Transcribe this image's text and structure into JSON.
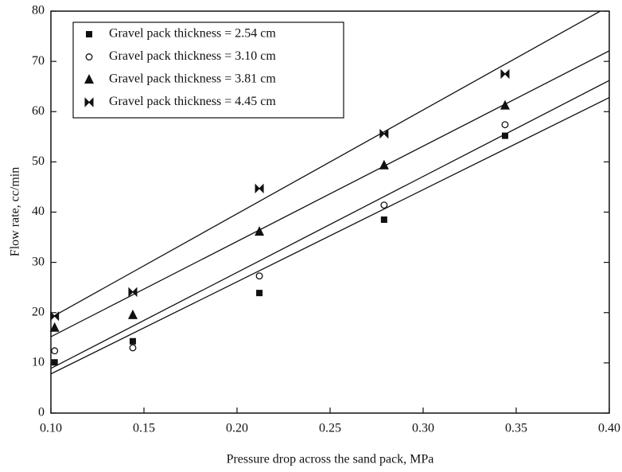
{
  "chart_data": {
    "type": "scatter",
    "xlabel": "Pressure drop across the sand pack, MPa",
    "ylabel": "Flow rate, cc/min",
    "x": [
      0.102,
      0.144,
      0.212,
      0.279,
      0.344
    ],
    "xlim": [
      0.1,
      0.4
    ],
    "xticks": [
      {
        "value": 0.1,
        "label": "0.10"
      },
      {
        "value": 0.15,
        "label": "0.15"
      },
      {
        "value": 0.2,
        "label": "0.20"
      },
      {
        "value": 0.25,
        "label": "0.25"
      },
      {
        "value": 0.3,
        "label": "0.30"
      },
      {
        "value": 0.35,
        "label": "0.35"
      },
      {
        "value": 0.4,
        "label": "0.40"
      }
    ],
    "ylim": [
      0,
      80
    ],
    "yticks": [
      0,
      10,
      20,
      30,
      40,
      50,
      60,
      70,
      80
    ],
    "legend": "upper left",
    "series": [
      {
        "name": "Gravel pack thickness = 2.54 cm",
        "marker": "square",
        "color": "#111111",
        "values": [
          10.1,
          14.3,
          23.9,
          38.5,
          55.2
        ],
        "fit": {
          "x": [
            0.1,
            0.4
          ],
          "values": [
            7.8,
            62.8
          ]
        }
      },
      {
        "name": "Gravel pack thickness = 3.10 cm",
        "marker": "circle",
        "color": "#111111",
        "values": [
          12.4,
          13.0,
          27.3,
          41.4,
          57.4
        ],
        "fit": {
          "x": [
            0.1,
            0.4
          ],
          "values": [
            8.9,
            66.2
          ]
        }
      },
      {
        "name": "Gravel pack thickness = 3.81 cm",
        "marker": "triangle",
        "color": "#111111",
        "values": [
          17.0,
          19.5,
          36.1,
          49.3,
          61.2
        ],
        "fit": {
          "x": [
            0.1,
            0.4
          ],
          "values": [
            15.2,
            72.1
          ]
        }
      },
      {
        "name": "Gravel pack thickness = 4.45 cm",
        "marker": "bowtie",
        "color": "#111111",
        "values": [
          19.3,
          24.1,
          44.7,
          55.6,
          67.5
        ],
        "fit": {
          "x": [
            0.1,
            0.4
          ],
          "values": [
            19.0,
            81.0
          ]
        }
      }
    ]
  }
}
